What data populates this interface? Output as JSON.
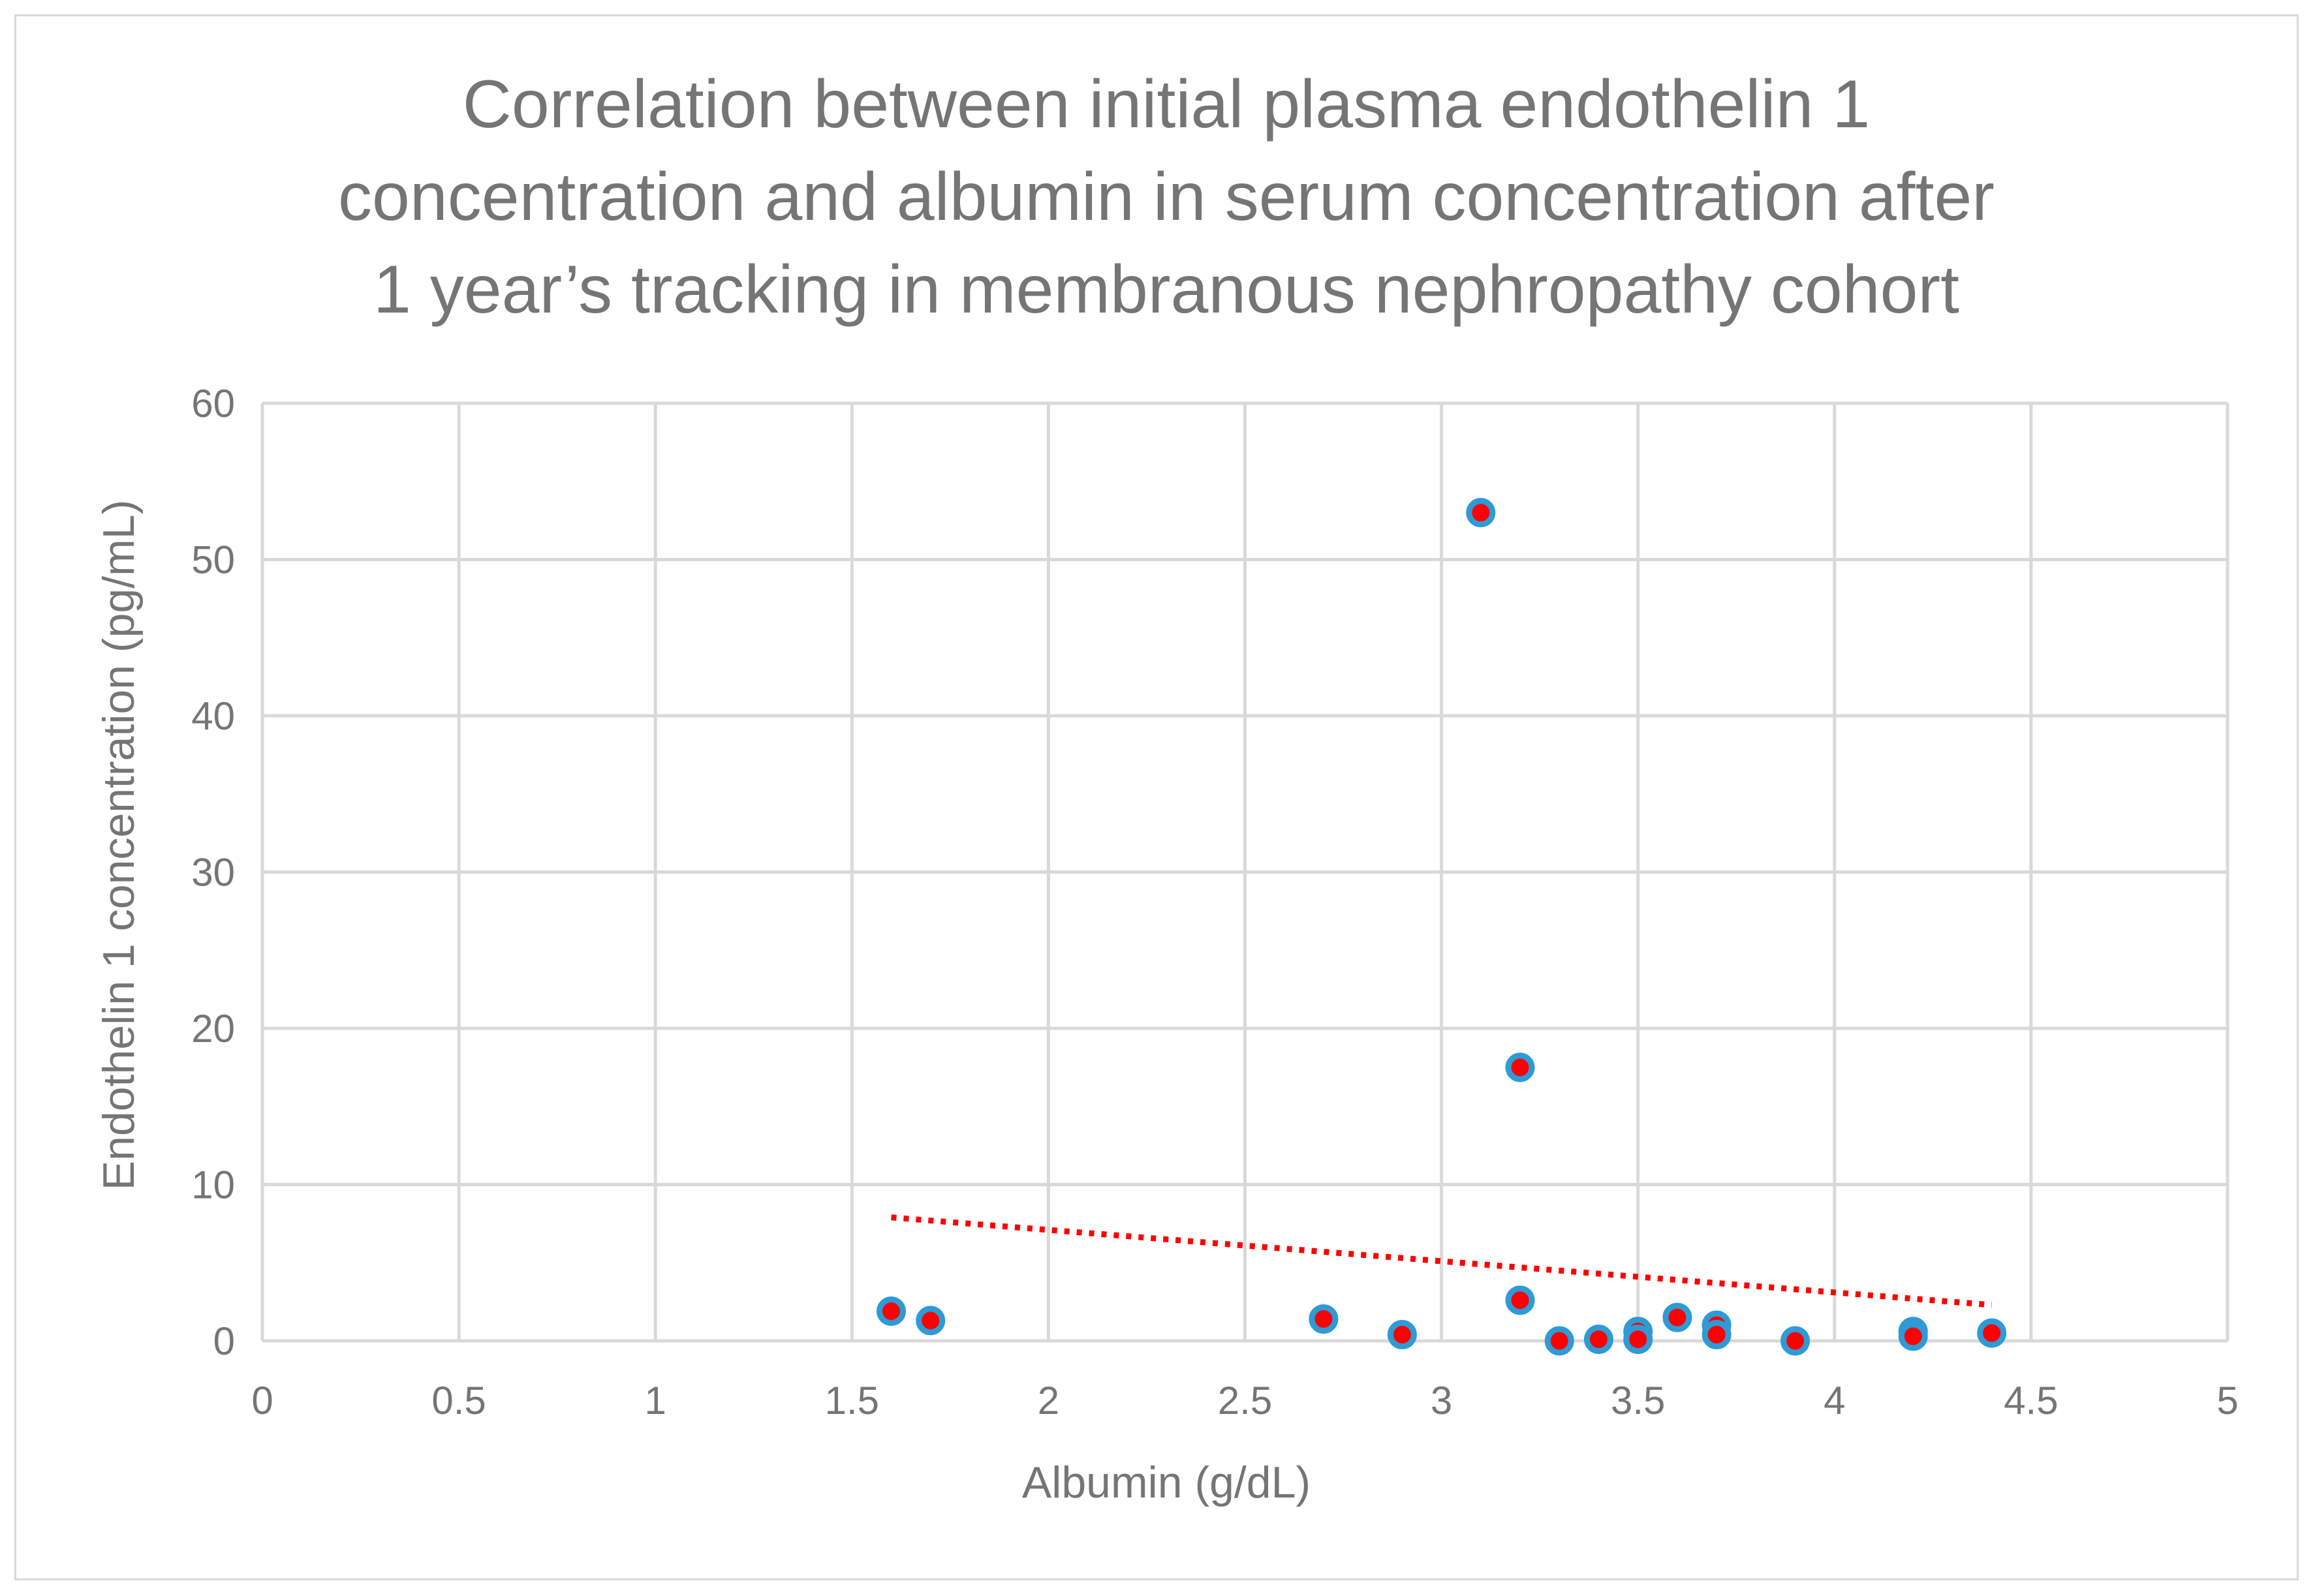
{
  "chart_data": {
    "type": "scatter",
    "title_lines": [
      "Correlation between initial plasma endothelin 1",
      "concentration and albumin in serum  concentration after",
      "1 year’s tracking in membranous nephropathy cohort"
    ],
    "xlabel": "Albumin (g/dL)",
    "ylabel": "Endothelin 1 concentration (pg/mL)",
    "xlim": [
      0,
      5
    ],
    "ylim": [
      0,
      60
    ],
    "x_ticks": [
      "0",
      "0.5",
      "1",
      "1.5",
      "2",
      "2.5",
      "3",
      "3.5",
      "4",
      "4.5",
      "5"
    ],
    "y_ticks": [
      "0",
      "10",
      "20",
      "30",
      "40",
      "50",
      "60"
    ],
    "grid": true,
    "series": [
      {
        "name": "Endothelin 1",
        "marker_fill": "#ff0000",
        "marker_edge": "#2e9bd6",
        "points": [
          {
            "x": 1.6,
            "y": 1.9
          },
          {
            "x": 1.7,
            "y": 1.3
          },
          {
            "x": 2.7,
            "y": 1.4
          },
          {
            "x": 2.9,
            "y": 0.4
          },
          {
            "x": 3.1,
            "y": 53.0
          },
          {
            "x": 3.2,
            "y": 17.5
          },
          {
            "x": 3.2,
            "y": 2.6
          },
          {
            "x": 3.3,
            "y": 0.0
          },
          {
            "x": 3.4,
            "y": 0.1
          },
          {
            "x": 3.5,
            "y": 0.6
          },
          {
            "x": 3.5,
            "y": 0.1
          },
          {
            "x": 3.6,
            "y": 1.5
          },
          {
            "x": 3.7,
            "y": 1.0
          },
          {
            "x": 3.7,
            "y": 0.4
          },
          {
            "x": 3.9,
            "y": 0.0
          },
          {
            "x": 4.2,
            "y": 0.6
          },
          {
            "x": 4.2,
            "y": 0.3
          },
          {
            "x": 4.4,
            "y": 0.5
          }
        ]
      }
    ],
    "trendline": {
      "type": "linear",
      "style": "dotted",
      "color": "#ff0000",
      "start": {
        "x": 1.6,
        "y": 7.9
      },
      "end": {
        "x": 4.4,
        "y": 2.3
      }
    }
  }
}
